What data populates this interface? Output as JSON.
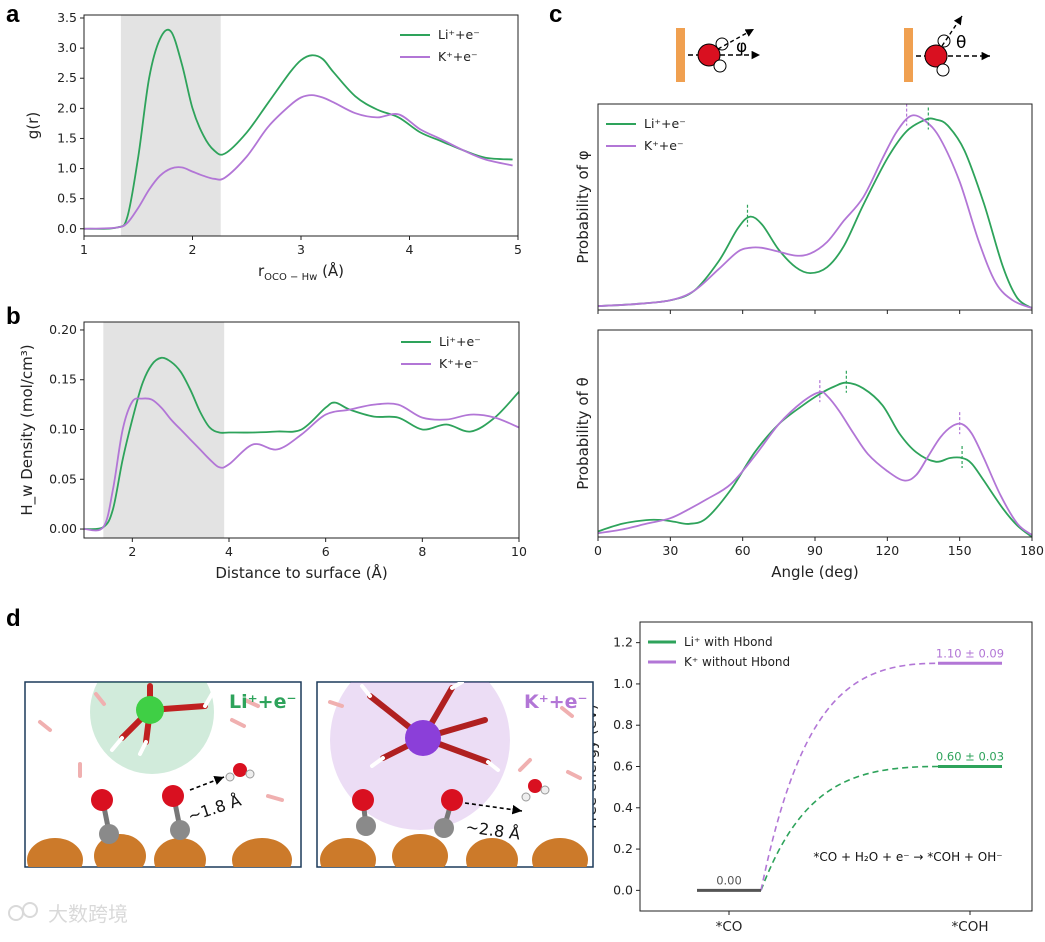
{
  "colors": {
    "li": "#2ea35b",
    "k": "#b276d6",
    "shade": "#e3e3e3",
    "wall": "#f0a050",
    "copper": "#cc7a2a",
    "oxygen": "#d91020",
    "carbon": "#8a8a8a"
  },
  "panels": {
    "a": "a",
    "b": "b",
    "c": "c",
    "d": "d"
  },
  "schematic": {
    "phi_label": "φ",
    "theta_label": "θ"
  },
  "snapshots": {
    "li": {
      "label": "Li⁺+e⁻",
      "distance": "~1.8 Å"
    },
    "k": {
      "label": "K⁺+e⁻",
      "distance": "~2.8 Å"
    }
  },
  "watermark": {
    "text": "大数跨境"
  },
  "chart_data": [
    {
      "id": "a",
      "type": "line",
      "xlabel": "r",
      "xlabel_sub": "OCO − Hw",
      "xlabel_unit": " (Å)",
      "ylabel": "g(r)",
      "xlim": [
        1,
        5
      ],
      "ylim": [
        -0.12,
        3.55
      ],
      "xticks": [
        1,
        2,
        3,
        4,
        5
      ],
      "xtick_labels": [
        "1",
        "2",
        "3",
        "4",
        "5"
      ],
      "yticks": [
        0.0,
        0.5,
        1.0,
        1.5,
        2.0,
        2.5,
        3.0,
        3.5
      ],
      "ytick_labels": [
        "0.0",
        "0.5",
        "1.0",
        "1.5",
        "2.0",
        "2.5",
        "3.0",
        "3.5"
      ],
      "shaded_region": [
        1.34,
        2.26
      ],
      "legend_position": "top-right",
      "series": [
        {
          "name": "Li⁺+e⁻",
          "color": "#2ea35b",
          "x": [
            1.0,
            1.3,
            1.4,
            1.5,
            1.6,
            1.7,
            1.8,
            1.9,
            2.0,
            2.1,
            2.2,
            2.3,
            2.5,
            2.7,
            2.9,
            3.0,
            3.1,
            3.2,
            3.3,
            3.5,
            3.7,
            3.9,
            4.1,
            4.3,
            4.5,
            4.7,
            4.95
          ],
          "y": [
            0.0,
            0.02,
            0.2,
            1.2,
            2.5,
            3.15,
            3.28,
            2.75,
            2.0,
            1.55,
            1.3,
            1.25,
            1.6,
            2.1,
            2.6,
            2.8,
            2.88,
            2.82,
            2.6,
            2.2,
            1.98,
            1.85,
            1.6,
            1.45,
            1.3,
            1.18,
            1.15
          ]
        },
        {
          "name": "K⁺+e⁻",
          "color": "#b276d6",
          "x": [
            1.0,
            1.3,
            1.4,
            1.5,
            1.6,
            1.7,
            1.8,
            1.9,
            2.0,
            2.1,
            2.2,
            2.3,
            2.5,
            2.7,
            2.9,
            3.0,
            3.1,
            3.2,
            3.3,
            3.5,
            3.7,
            3.9,
            4.1,
            4.3,
            4.5,
            4.7,
            4.95
          ],
          "y": [
            0.0,
            0.02,
            0.1,
            0.35,
            0.65,
            0.88,
            1.0,
            1.02,
            0.95,
            0.88,
            0.83,
            0.85,
            1.2,
            1.7,
            2.05,
            2.18,
            2.22,
            2.18,
            2.1,
            1.92,
            1.85,
            1.9,
            1.65,
            1.48,
            1.3,
            1.15,
            1.05
          ]
        }
      ]
    },
    {
      "id": "b",
      "type": "line",
      "xlabel": "Distance to surface (Å)",
      "ylabel": "H_w Density (mol/cm³)",
      "xlim": [
        1,
        10
      ],
      "ylim": [
        -0.009,
        0.208
      ],
      "xticks": [
        2,
        4,
        6,
        8,
        10
      ],
      "xtick_labels": [
        "2",
        "4",
        "6",
        "8",
        "10"
      ],
      "yticks": [
        0.0,
        0.05,
        0.1,
        0.15,
        0.2
      ],
      "ytick_labels": [
        "0.00",
        "0.05",
        "0.10",
        "0.15",
        "0.20"
      ],
      "shaded_region": [
        1.4,
        3.9
      ],
      "legend_position": "top-right",
      "series": [
        {
          "name": "Li⁺+e⁻",
          "color": "#2ea35b",
          "x": [
            1.0,
            1.4,
            1.6,
            1.8,
            2.0,
            2.2,
            2.4,
            2.6,
            2.8,
            3.0,
            3.2,
            3.4,
            3.6,
            3.8,
            4.0,
            4.5,
            5.0,
            5.5,
            6.0,
            6.2,
            6.5,
            7.0,
            7.5,
            8.0,
            8.5,
            9.0,
            9.5,
            10.0
          ],
          "y": [
            0.0,
            0.002,
            0.02,
            0.07,
            0.11,
            0.145,
            0.165,
            0.172,
            0.168,
            0.158,
            0.14,
            0.118,
            0.102,
            0.097,
            0.097,
            0.097,
            0.098,
            0.1,
            0.122,
            0.127,
            0.12,
            0.113,
            0.112,
            0.1,
            0.105,
            0.098,
            0.112,
            0.138
          ]
        },
        {
          "name": "K⁺+e⁻",
          "color": "#b276d6",
          "x": [
            1.0,
            1.4,
            1.6,
            1.8,
            2.0,
            2.2,
            2.4,
            2.6,
            2.8,
            3.0,
            3.2,
            3.4,
            3.6,
            3.8,
            4.0,
            4.5,
            5.0,
            5.5,
            6.0,
            6.5,
            7.0,
            7.5,
            8.0,
            8.5,
            9.0,
            9.5,
            10.0
          ],
          "y": [
            0.0,
            0.002,
            0.04,
            0.1,
            0.128,
            0.131,
            0.13,
            0.122,
            0.11,
            0.1,
            0.09,
            0.08,
            0.07,
            0.062,
            0.065,
            0.085,
            0.08,
            0.095,
            0.115,
            0.12,
            0.125,
            0.125,
            0.112,
            0.11,
            0.115,
            0.112,
            0.102
          ]
        }
      ]
    },
    {
      "id": "c_top",
      "type": "line",
      "xlabel": "",
      "ylabel": "Probability of φ",
      "xlim": [
        0,
        180
      ],
      "ylim": [
        0,
        1.06
      ],
      "xticks": [
        0,
        30,
        60,
        90,
        120,
        150,
        180
      ],
      "xtick_labels": [],
      "yticks": [],
      "ytick_labels": [],
      "legend_position": "top-left",
      "series": [
        {
          "name": "Li⁺+e⁻",
          "color": "#2ea35b",
          "x": [
            0,
            15,
            30,
            40,
            50,
            58,
            63,
            68,
            75,
            82,
            88,
            95,
            102,
            110,
            120,
            128,
            136,
            140,
            145,
            152,
            160,
            168,
            174,
            180
          ],
          "y": [
            0.02,
            0.03,
            0.05,
            0.1,
            0.25,
            0.42,
            0.48,
            0.44,
            0.31,
            0.22,
            0.19,
            0.22,
            0.33,
            0.54,
            0.78,
            0.92,
            0.98,
            0.98,
            0.95,
            0.82,
            0.55,
            0.22,
            0.06,
            0.01
          ]
        },
        {
          "name": "K⁺+e⁻",
          "color": "#b276d6",
          "x": [
            0,
            15,
            30,
            40,
            50,
            58,
            63,
            68,
            75,
            82,
            88,
            95,
            102,
            110,
            118,
            124,
            130,
            136,
            142,
            150,
            158,
            165,
            172,
            180
          ],
          "y": [
            0.02,
            0.03,
            0.05,
            0.1,
            0.21,
            0.3,
            0.32,
            0.32,
            0.3,
            0.28,
            0.29,
            0.35,
            0.46,
            0.58,
            0.78,
            0.92,
            1.0,
            0.97,
            0.88,
            0.66,
            0.35,
            0.14,
            0.05,
            0.01
          ]
        }
      ],
      "peak_markers": [
        {
          "x": 62,
          "color": "#2ea35b"
        },
        {
          "x": 128,
          "color": "#b276d6"
        },
        {
          "x": 137,
          "color": "#2ea35b"
        }
      ]
    },
    {
      "id": "c_bottom",
      "type": "line",
      "xlabel": "Angle (deg)",
      "ylabel": "Probability of θ",
      "xlim": [
        0,
        180
      ],
      "ylim": [
        0,
        1.1
      ],
      "xticks": [
        0,
        30,
        60,
        90,
        120,
        150,
        180
      ],
      "xtick_labels": [
        "0",
        "30",
        "60",
        "90",
        "120",
        "150",
        "180"
      ],
      "yticks": [],
      "ytick_labels": [],
      "series": [
        {
          "name": "Li⁺+e⁻",
          "color": "#2ea35b",
          "x": [
            0,
            10,
            20,
            27,
            32,
            38,
            45,
            55,
            65,
            75,
            85,
            92,
            98,
            103,
            110,
            118,
            125,
            132,
            140,
            146,
            151,
            155,
            160,
            168,
            174,
            180
          ],
          "y": [
            0.03,
            0.07,
            0.09,
            0.09,
            0.08,
            0.07,
            0.1,
            0.25,
            0.45,
            0.6,
            0.7,
            0.76,
            0.8,
            0.82,
            0.79,
            0.7,
            0.55,
            0.45,
            0.4,
            0.42,
            0.42,
            0.39,
            0.3,
            0.15,
            0.06,
            0.0
          ]
        },
        {
          "name": "K⁺+e⁻",
          "color": "#b276d6",
          "x": [
            0,
            10,
            20,
            30,
            38,
            45,
            55,
            65,
            75,
            85,
            92,
            95,
            100,
            106,
            112,
            120,
            127,
            132,
            137,
            142,
            147,
            151,
            155,
            160,
            167,
            174,
            180
          ],
          "y": [
            0.02,
            0.04,
            0.07,
            0.1,
            0.15,
            0.2,
            0.28,
            0.43,
            0.6,
            0.72,
            0.77,
            0.75,
            0.67,
            0.55,
            0.44,
            0.35,
            0.3,
            0.33,
            0.43,
            0.53,
            0.59,
            0.6,
            0.55,
            0.42,
            0.22,
            0.07,
            0.01
          ]
        }
      ],
      "peak_markers": [
        {
          "x": 92,
          "color": "#b276d6"
        },
        {
          "x": 103,
          "color": "#2ea35b"
        },
        {
          "x": 150,
          "color": "#b276d6"
        },
        {
          "x": 151,
          "color": "#2ea35b"
        }
      ]
    },
    {
      "id": "d",
      "type": "line",
      "xlabel": "",
      "ylabel": "Free energy (eV)",
      "xlim": [
        0,
        1
      ],
      "ylim": [
        -0.1,
        1.3
      ],
      "xtick_labels": [
        "*CO",
        "*COH"
      ],
      "yticks": [
        0.0,
        0.2,
        0.4,
        0.6,
        0.8,
        1.0,
        1.2
      ],
      "ytick_labels": [
        "0.0",
        "0.2",
        "0.4",
        "0.6",
        "0.8",
        "1.0",
        "1.2"
      ],
      "legend_position": "top-left",
      "levels": [
        {
          "label": "0.00",
          "value": 0.0,
          "color": "#555555"
        },
        {
          "label": "0.60 ± 0.03",
          "value": 0.6,
          "color": "#2ea35b"
        },
        {
          "label": "1.10 ± 0.09",
          "value": 1.1,
          "color": "#b276d6"
        }
      ],
      "series": [
        {
          "name": "Li⁺ with Hbond",
          "color": "#2ea35b",
          "start": 0.0,
          "end": 0.6
        },
        {
          "name": "K⁺ without Hbond",
          "color": "#b276d6",
          "start": 0.0,
          "end": 1.1
        }
      ],
      "reaction": "*CO + H₂O + e⁻ → *COH + OH⁻"
    }
  ]
}
